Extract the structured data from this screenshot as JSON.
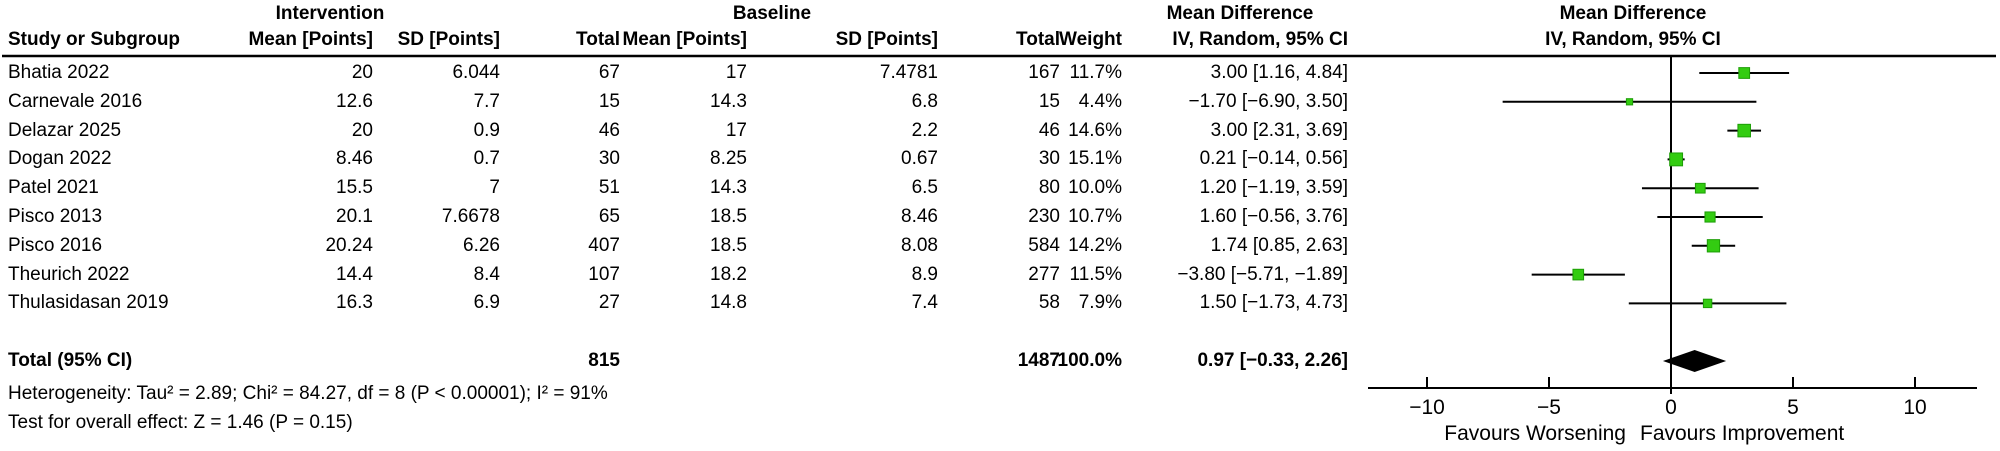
{
  "table": {
    "group_headers": {
      "intervention": "Intervention",
      "baseline": "Baseline",
      "md_text": "Mean Difference",
      "md_plot": "Mean Difference"
    },
    "col_headers": {
      "study": "Study or Subgroup",
      "i_mean": "Mean [Points]",
      "i_sd": "SD [Points]",
      "i_total": "Total",
      "b_mean": "Mean [Points]",
      "b_sd": "SD [Points]",
      "b_total": "Total",
      "weight": "Weight",
      "ci": "IV, Random, 95% CI",
      "ci_plot": "IV, Random, 95% CI"
    },
    "rows": [
      {
        "study": "Bhatia 2022",
        "i_mean": "20",
        "i_sd": "6.044",
        "i_total": "67",
        "b_mean": "17",
        "b_sd": "7.4781",
        "b_total": "167",
        "weight": "11.7%",
        "ci": "3.00 [1.16, 4.84]"
      },
      {
        "study": "Carnevale 2016",
        "i_mean": "12.6",
        "i_sd": "7.7",
        "i_total": "15",
        "b_mean": "14.3",
        "b_sd": "6.8",
        "b_total": "15",
        "weight": "4.4%",
        "ci": "−1.70 [−6.90, 3.50]"
      },
      {
        "study": "Delazar 2025",
        "i_mean": "20",
        "i_sd": "0.9",
        "i_total": "46",
        "b_mean": "17",
        "b_sd": "2.2",
        "b_total": "46",
        "weight": "14.6%",
        "ci": "3.00 [2.31, 3.69]"
      },
      {
        "study": "Dogan 2022",
        "i_mean": "8.46",
        "i_sd": "0.7",
        "i_total": "30",
        "b_mean": "8.25",
        "b_sd": "0.67",
        "b_total": "30",
        "weight": "15.1%",
        "ci": "0.21 [−0.14, 0.56]"
      },
      {
        "study": "Patel 2021",
        "i_mean": "15.5",
        "i_sd": "7",
        "i_total": "51",
        "b_mean": "14.3",
        "b_sd": "6.5",
        "b_total": "80",
        "weight": "10.0%",
        "ci": "1.20 [−1.19, 3.59]"
      },
      {
        "study": "Pisco 2013",
        "i_mean": "20.1",
        "i_sd": "7.6678",
        "i_total": "65",
        "b_mean": "18.5",
        "b_sd": "8.46",
        "b_total": "230",
        "weight": "10.7%",
        "ci": "1.60 [−0.56, 3.76]"
      },
      {
        "study": "Pisco 2016",
        "i_mean": "20.24",
        "i_sd": "6.26",
        "i_total": "407",
        "b_mean": "18.5",
        "b_sd": "8.08",
        "b_total": "584",
        "weight": "14.2%",
        "ci": "1.74 [0.85, 2.63]"
      },
      {
        "study": "Theurich 2022",
        "i_mean": "14.4",
        "i_sd": "8.4",
        "i_total": "107",
        "b_mean": "18.2",
        "b_sd": "8.9",
        "b_total": "277",
        "weight": "11.5%",
        "ci": "−3.80 [−5.71, −1.89]"
      },
      {
        "study": "Thulasidasan 2019",
        "i_mean": "16.3",
        "i_sd": "6.9",
        "i_total": "27",
        "b_mean": "14.8",
        "b_sd": "7.4",
        "b_total": "58",
        "weight": "7.9%",
        "ci": "1.50 [−1.73, 4.73]"
      }
    ],
    "total_row": {
      "label": "Total (95% CI)",
      "i_total": "815",
      "b_total": "1487",
      "weight": "100.0%",
      "ci": "0.97 [−0.33, 2.26]"
    },
    "footer": {
      "heterogeneity": "Heterogeneity: Tau² = 2.89; Chi² = 84.27, df = 8 (P < 0.00001); I² = 91%",
      "overall_effect": "Test for overall effect: Z = 1.46 (P = 0.15)"
    }
  },
  "chart_data": {
    "type": "forest",
    "title": "Mean Difference",
    "subtitle": "IV, Random, 95% CI",
    "effect_measure": "Mean Difference, IV, Random, 95% CI",
    "x_ticks": [
      -10,
      -5,
      0,
      5,
      10
    ],
    "xlim": [
      -12.4,
      12.5
    ],
    "favours_left": "Favours Worsening",
    "favours_right": "Favours Improvement",
    "marker_color": "#33cc11",
    "marker_edge_color": "#1d9e06",
    "line_color": "#000000",
    "studies": [
      {
        "name": "Bhatia 2022",
        "md": 3.0,
        "ci_low": 1.16,
        "ci_high": 4.84,
        "weight_pct": 11.7
      },
      {
        "name": "Carnevale 2016",
        "md": -1.7,
        "ci_low": -6.9,
        "ci_high": 3.5,
        "weight_pct": 4.4
      },
      {
        "name": "Delazar 2025",
        "md": 3.0,
        "ci_low": 2.31,
        "ci_high": 3.69,
        "weight_pct": 14.6
      },
      {
        "name": "Dogan 2022",
        "md": 0.21,
        "ci_low": -0.14,
        "ci_high": 0.56,
        "weight_pct": 15.1
      },
      {
        "name": "Patel 2021",
        "md": 1.2,
        "ci_low": -1.19,
        "ci_high": 3.59,
        "weight_pct": 10.0
      },
      {
        "name": "Pisco 2013",
        "md": 1.6,
        "ci_low": -0.56,
        "ci_high": 3.76,
        "weight_pct": 10.7
      },
      {
        "name": "Pisco 2016",
        "md": 1.74,
        "ci_low": 0.85,
        "ci_high": 2.63,
        "weight_pct": 14.2
      },
      {
        "name": "Theurich 2022",
        "md": -3.8,
        "ci_low": -5.71,
        "ci_high": -1.89,
        "weight_pct": 11.5
      },
      {
        "name": "Thulasidasan 2019",
        "md": 1.5,
        "ci_low": -1.73,
        "ci_high": 4.73,
        "weight_pct": 7.9
      }
    ],
    "pooled": {
      "name": "Total (95% CI)",
      "md": 0.97,
      "ci_low": -0.33,
      "ci_high": 2.26,
      "weight_pct": 100.0
    }
  }
}
